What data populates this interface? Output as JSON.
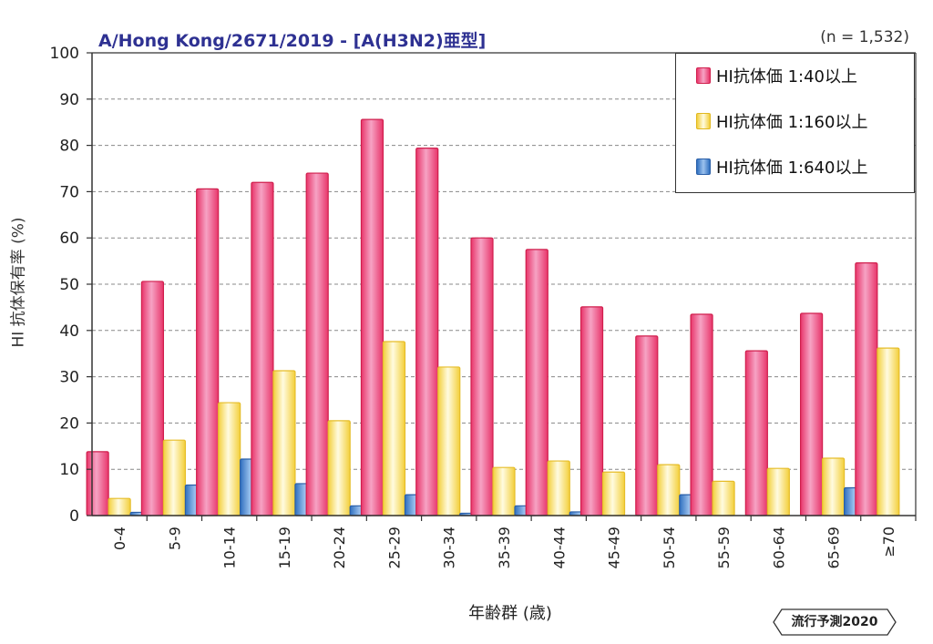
{
  "chart_data": {
    "type": "bar",
    "title": "A/Hong Kong/2671/2019 - [A(H3N2)亜型]",
    "sample_size": "(n = 1,532)",
    "xlabel": "年齢群 (歳)",
    "ylabel": "HI 抗体保有率 (%)",
    "ylim": [
      0,
      100
    ],
    "yticks": [
      "0",
      "10",
      "20",
      "30",
      "40",
      "50",
      "60",
      "70",
      "80",
      "90",
      "100"
    ],
    "grid": true,
    "legend_position": "top-right",
    "categories": [
      "0-4",
      "5-9",
      "10-14",
      "15-19",
      "20-24",
      "25-29",
      "30-34",
      "35-39",
      "40-44",
      "45-49",
      "50-54",
      "55-59",
      "60-64",
      "65-69",
      "≥70"
    ],
    "series": [
      {
        "name": "HI抗体価 1:40以上",
        "color": "#e8356a",
        "values": [
          13.8,
          50.6,
          70.6,
          72.0,
          74.0,
          85.6,
          79.4,
          60.0,
          57.5,
          45.1,
          38.8,
          43.5,
          35.6,
          43.7,
          54.6
        ]
      },
      {
        "name": "HI抗体価 1:160以上",
        "color": "#f7d65a",
        "values": [
          3.7,
          16.3,
          24.4,
          31.3,
          20.5,
          37.6,
          32.1,
          10.4,
          11.8,
          9.4,
          11.0,
          7.4,
          10.2,
          12.4,
          36.2
        ]
      },
      {
        "name": "HI抗体価 1:640以上",
        "color": "#3d7fcc",
        "values": [
          0.7,
          6.6,
          12.2,
          6.9,
          2.1,
          4.5,
          0.5,
          2.1,
          0.8,
          0,
          4.5,
          0,
          0,
          6.0,
          0
        ]
      }
    ]
  },
  "badge": "流行予測2020"
}
